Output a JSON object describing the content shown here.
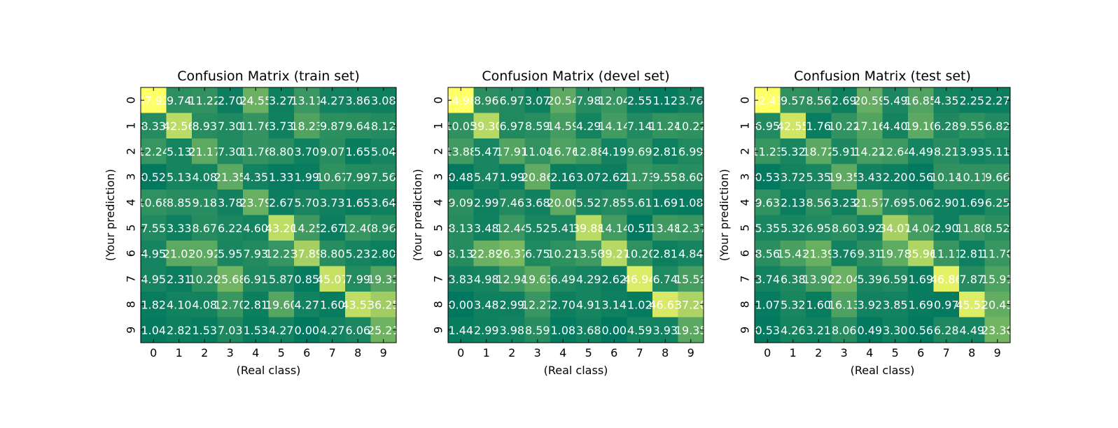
{
  "colors": {
    "low": "#00785f",
    "high": "#ffff66",
    "cell_text": "#ffffff",
    "frame": "#000000"
  },
  "chart_data": [
    {
      "type": "heatmap",
      "title": "Confusion Matrix (train set)",
      "xlabel": "(Real class)",
      "ylabel": "(Your prediction)",
      "x_ticks": [
        "0",
        "1",
        "2",
        "3",
        "4",
        "5",
        "6",
        "7",
        "8",
        "9"
      ],
      "y_ticks": [
        "0",
        "1",
        "2",
        "3",
        "4",
        "5",
        "6",
        "7",
        "8",
        "9"
      ],
      "grid": false,
      "cells": [
        [
          "57.92",
          "9.74",
          "11.22",
          "2.70",
          "24.55",
          "3.27",
          "13.11",
          "4.27",
          "3.86",
          "3.08"
        ],
        [
          "8.33",
          "42.56",
          "8.93",
          "7.30",
          "11.76",
          "3.73",
          "18.23",
          "9.87",
          "9.64",
          "8.12"
        ],
        [
          "12.24",
          "5.13",
          "21.17",
          "7.30",
          "11.76",
          "8.80",
          "3.70",
          "9.07",
          "1.65",
          "5.04"
        ],
        [
          "0.52",
          "5.13",
          "4.08",
          "21.35",
          "4.35",
          "1.33",
          "1.99",
          "10.67",
          "7.99",
          "7.56"
        ],
        [
          "10.68",
          "8.85",
          "9.18",
          "3.78",
          "23.79",
          "2.67",
          "5.70",
          "3.73",
          "1.65",
          "3.64"
        ],
        [
          "7.55",
          "3.33",
          "8.67",
          "6.22",
          "4.60",
          "43.20",
          "14.25",
          "2.67",
          "12.40",
          "8.96"
        ],
        [
          "4.95",
          "21.03",
          "20.92",
          "5.95",
          "7.93",
          "12.23",
          "37.89",
          "8.80",
          "5.23",
          "2.80"
        ],
        [
          "4.95",
          "2.31",
          "10.20",
          "25.68",
          "6.91",
          "5.87",
          "0.85",
          "45.07",
          "7.99",
          "19.33"
        ],
        [
          "1.82",
          "4.10",
          "4.08",
          "12.70",
          "2.81",
          "19.60",
          "4.27",
          "1.60",
          "43.53",
          "36.25"
        ],
        [
          "1.04",
          "2.82",
          "1.53",
          "7.03",
          "1.53",
          "4.27",
          "0.00",
          "4.27",
          "6.06",
          "25.21"
        ]
      ]
    },
    {
      "type": "heatmap",
      "title": "Confusion Matrix (devel set)",
      "xlabel": "(Real class)",
      "ylabel": "(Your prediction)",
      "x_ticks": [
        "0",
        "1",
        "2",
        "3",
        "4",
        "5",
        "6",
        "7",
        "8",
        "9"
      ],
      "y_ticks": [
        "0",
        "1",
        "2",
        "3",
        "4",
        "5",
        "6",
        "7",
        "8",
        "9"
      ],
      "grid": false,
      "cells": [
        [
          "54.98",
          "8.96",
          "6.97",
          "3.07",
          "20.54",
          "7.98",
          "12.04",
          "2.55",
          "1.12",
          "3.76"
        ],
        [
          "10.05",
          "39.30",
          "6.97",
          "8.59",
          "14.59",
          "4.29",
          "14.14",
          "7.14",
          "11.24",
          "10.22"
        ],
        [
          "13.88",
          "5.47",
          "17.91",
          "11.04",
          "16.76",
          "12.88",
          "4.19",
          "9.69",
          "2.81",
          "6.99"
        ],
        [
          "0.48",
          "5.47",
          "1.99",
          "20.86",
          "2.16",
          "3.07",
          "2.62",
          "11.73",
          "9.55",
          "8.60"
        ],
        [
          "9.09",
          "2.99",
          "7.46",
          "3.68",
          "20.00",
          "5.52",
          "7.85",
          "5.61",
          "1.69",
          "1.08"
        ],
        [
          "8.13",
          "3.48",
          "12.44",
          "5.52",
          "5.41",
          "39.88",
          "14.14",
          "0.51",
          "13.48",
          "12.37"
        ],
        [
          "8.13",
          "22.89",
          "26.37",
          "6.75",
          "10.27",
          "13.50",
          "39.27",
          "10.20",
          "2.81",
          "4.84"
        ],
        [
          "3.83",
          "4.98",
          "12.94",
          "19.63",
          "6.49",
          "4.29",
          "2.62",
          "46.94",
          "6.74",
          "15.59"
        ],
        [
          "0.00",
          "3.48",
          "2.99",
          "12.27",
          "2.70",
          "4.91",
          "3.14",
          "1.02",
          "46.63",
          "37.20"
        ],
        [
          "1.44",
          "2.99",
          "3.98",
          "8.59",
          "1.08",
          "3.68",
          "0.00",
          "4.59",
          "3.93",
          "19.35"
        ]
      ]
    },
    {
      "type": "heatmap",
      "title": "Confusion Matrix (test set)",
      "xlabel": "(Real class)",
      "ylabel": "(Your prediction)",
      "x_ticks": [
        "0",
        "1",
        "2",
        "3",
        "4",
        "5",
        "6",
        "7",
        "8",
        "9"
      ],
      "y_ticks": [
        "0",
        "1",
        "2",
        "3",
        "4",
        "5",
        "6",
        "7",
        "8",
        "9"
      ],
      "grid": false,
      "cells": [
        [
          "52.41",
          "9.57",
          "8.56",
          "2.69",
          "20.59",
          "5.49",
          "16.85",
          "4.35",
          "2.25",
          "2.27"
        ],
        [
          "6.95",
          "42.55",
          "1.76",
          "10.22",
          "17.16",
          "4.40",
          "19.10",
          "6.28",
          "9.55",
          "6.82"
        ],
        [
          "11.23",
          "5.32",
          "18.72",
          "5.91",
          "14.22",
          "12.64",
          "4.49",
          "8.21",
          "3.93",
          "5.11"
        ],
        [
          "0.53",
          "3.72",
          "5.35",
          "19.35",
          "3.43",
          "2.20",
          "0.56",
          "10.14",
          "10.11",
          "9.66"
        ],
        [
          "9.63",
          "2.13",
          "8.56",
          "3.23",
          "21.57",
          "7.69",
          "5.06",
          "2.90",
          "1.69",
          "6.25"
        ],
        [
          "5.35",
          "5.32",
          "6.95",
          "8.60",
          "3.92",
          "34.07",
          "14.04",
          "2.90",
          "11.80",
          "8.52"
        ],
        [
          "8.56",
          "15.43",
          "21.39",
          "3.76",
          "9.31",
          "19.78",
          "35.96",
          "11.11",
          "2.81",
          "11.70"
        ],
        [
          "3.74",
          "6.38",
          "13.90",
          "22.04",
          "5.39",
          "6.59",
          "1.69",
          "46.86",
          "7.87",
          "15.91"
        ],
        [
          "1.07",
          "5.32",
          "1.60",
          "16.13",
          "3.92",
          "3.85",
          "1.69",
          "0.97",
          "45.52",
          "20.45"
        ],
        [
          "0.53",
          "4.26",
          "3.21",
          "8.06",
          "0.49",
          "3.30",
          "0.56",
          "6.28",
          "4.49",
          "23.30"
        ]
      ]
    }
  ]
}
